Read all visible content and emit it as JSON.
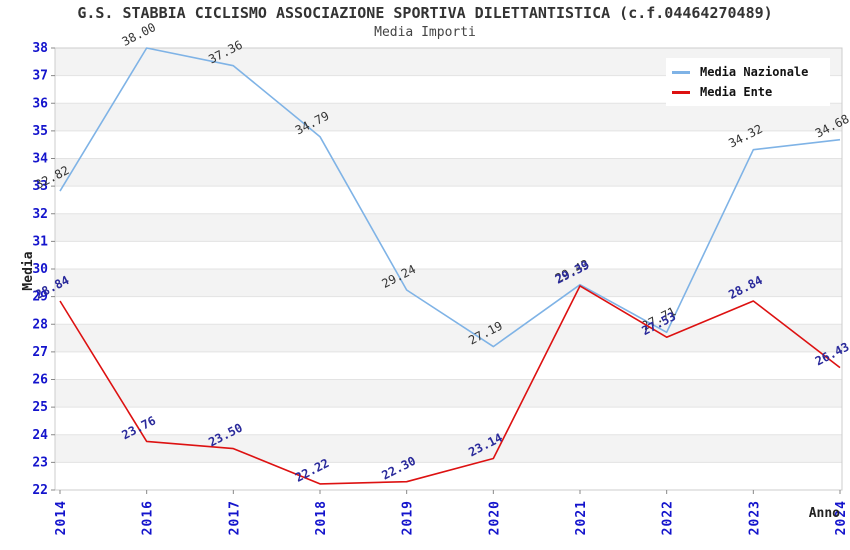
{
  "chart_data": {
    "type": "line",
    "title": "G.S. STABBIA CICLISMO ASSOCIAZIONE SPORTIVA DILETTANTISTICA (c.f.04464270489)",
    "subtitle": "Media Importi",
    "xlabel": "Anno",
    "ylabel": "Media",
    "categories": [
      "2014",
      "2016",
      "2017",
      "2018",
      "2019",
      "2020",
      "2021",
      "2022",
      "2023",
      "2024"
    ],
    "series": [
      {
        "name": "Media Nazionale",
        "color": "#7fb3e6",
        "label_color": "#333333",
        "label_bold": false,
        "values": [
          32.82,
          38.0,
          37.36,
          34.79,
          29.24,
          27.19,
          29.43,
          27.71,
          34.32,
          34.68
        ]
      },
      {
        "name": "Media Ente",
        "color": "#dd1111",
        "label_color": "#2a2a9b",
        "label_bold": true,
        "values": [
          28.84,
          23.76,
          23.5,
          22.22,
          22.3,
          23.14,
          29.39,
          27.53,
          28.84,
          26.43
        ]
      }
    ],
    "ylim": [
      22,
      38
    ],
    "ytick_step": 1,
    "grid": true,
    "legend_position": "top-right",
    "colors": {
      "band": "#f3f3f3",
      "grid_line": "#e3e3e3",
      "plot_border": "#cccccc",
      "axis_tick_label": "#1414cc",
      "tick_mark": "#888888"
    }
  }
}
